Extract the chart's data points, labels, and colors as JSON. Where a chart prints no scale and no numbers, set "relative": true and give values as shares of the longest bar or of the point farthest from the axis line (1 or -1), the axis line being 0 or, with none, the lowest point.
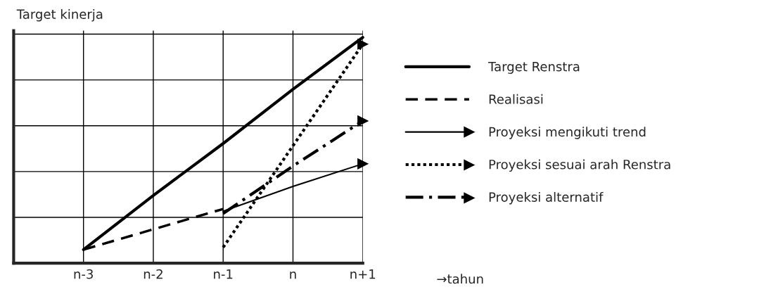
{
  "chart_data": {
    "type": "line",
    "relative": true,
    "ylabel": "Target kinerja",
    "annotations": [
      "→tahun"
    ],
    "categories": [
      "n-3",
      "n-2",
      "n-1",
      "n",
      "n+1"
    ],
    "grid": true,
    "legend": "right",
    "series": [
      {
        "name": "Target Renstra",
        "color": "#000000",
        "line_style": "solid",
        "values": [
          0.06,
          0.3,
          0.53,
          0.77,
          1
        ]
      },
      {
        "name": "Realisasi",
        "color": "#000000",
        "line_style": "dashed",
        "values": [
          0.06,
          0.15,
          0.24,
          null,
          null
        ]
      },
      {
        "name": "Proyeksi mengikuti trend",
        "color": "#000000",
        "line_style": "solid",
        "values": [
          null,
          null,
          0.23,
          0.34,
          0.44
        ]
      },
      {
        "name": "Proyeksi sesuai arah Renstra",
        "color": "#000000",
        "line_style": "dotted",
        "values": [
          null,
          null,
          0.07,
          0.52,
          0.97
        ]
      },
      {
        "name": "Proyeksi alternatif",
        "color": "#000000",
        "line_style": "dashdot",
        "values": [
          null,
          null,
          0.22,
          0.43,
          0.63
        ]
      }
    ]
  }
}
